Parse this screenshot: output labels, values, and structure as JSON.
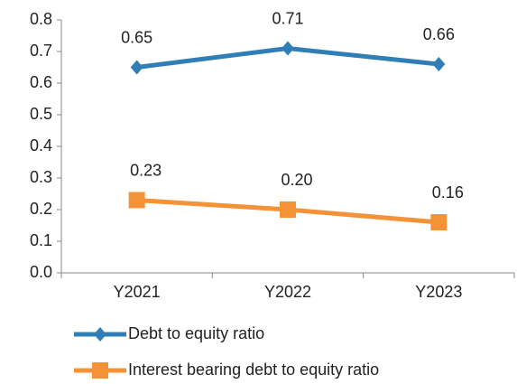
{
  "chart_data": {
    "type": "line",
    "categories": [
      "Y2021",
      "Y2022",
      "Y2023"
    ],
    "series": [
      {
        "name": "Debt to equity ratio",
        "color": "#2f7fb6",
        "marker": "diamond",
        "values": [
          0.65,
          0.71,
          0.66
        ],
        "value_labels": [
          "0.65",
          "0.71",
          "0.66"
        ]
      },
      {
        "name": "Interest bearing debt to equity ratio",
        "color": "#f39237",
        "marker": "square",
        "values": [
          0.23,
          0.2,
          0.16
        ],
        "value_labels": [
          "0.23",
          "0.20",
          "0.16"
        ]
      }
    ],
    "ylim": [
      0,
      0.8
    ],
    "yticks": [
      {
        "value": 0,
        "label": "0.0"
      },
      0.1,
      0.2,
      0.3,
      0.4,
      0.5,
      0.6,
      0.7,
      0.8
    ],
    "grid": false,
    "legend": "bottom"
  }
}
